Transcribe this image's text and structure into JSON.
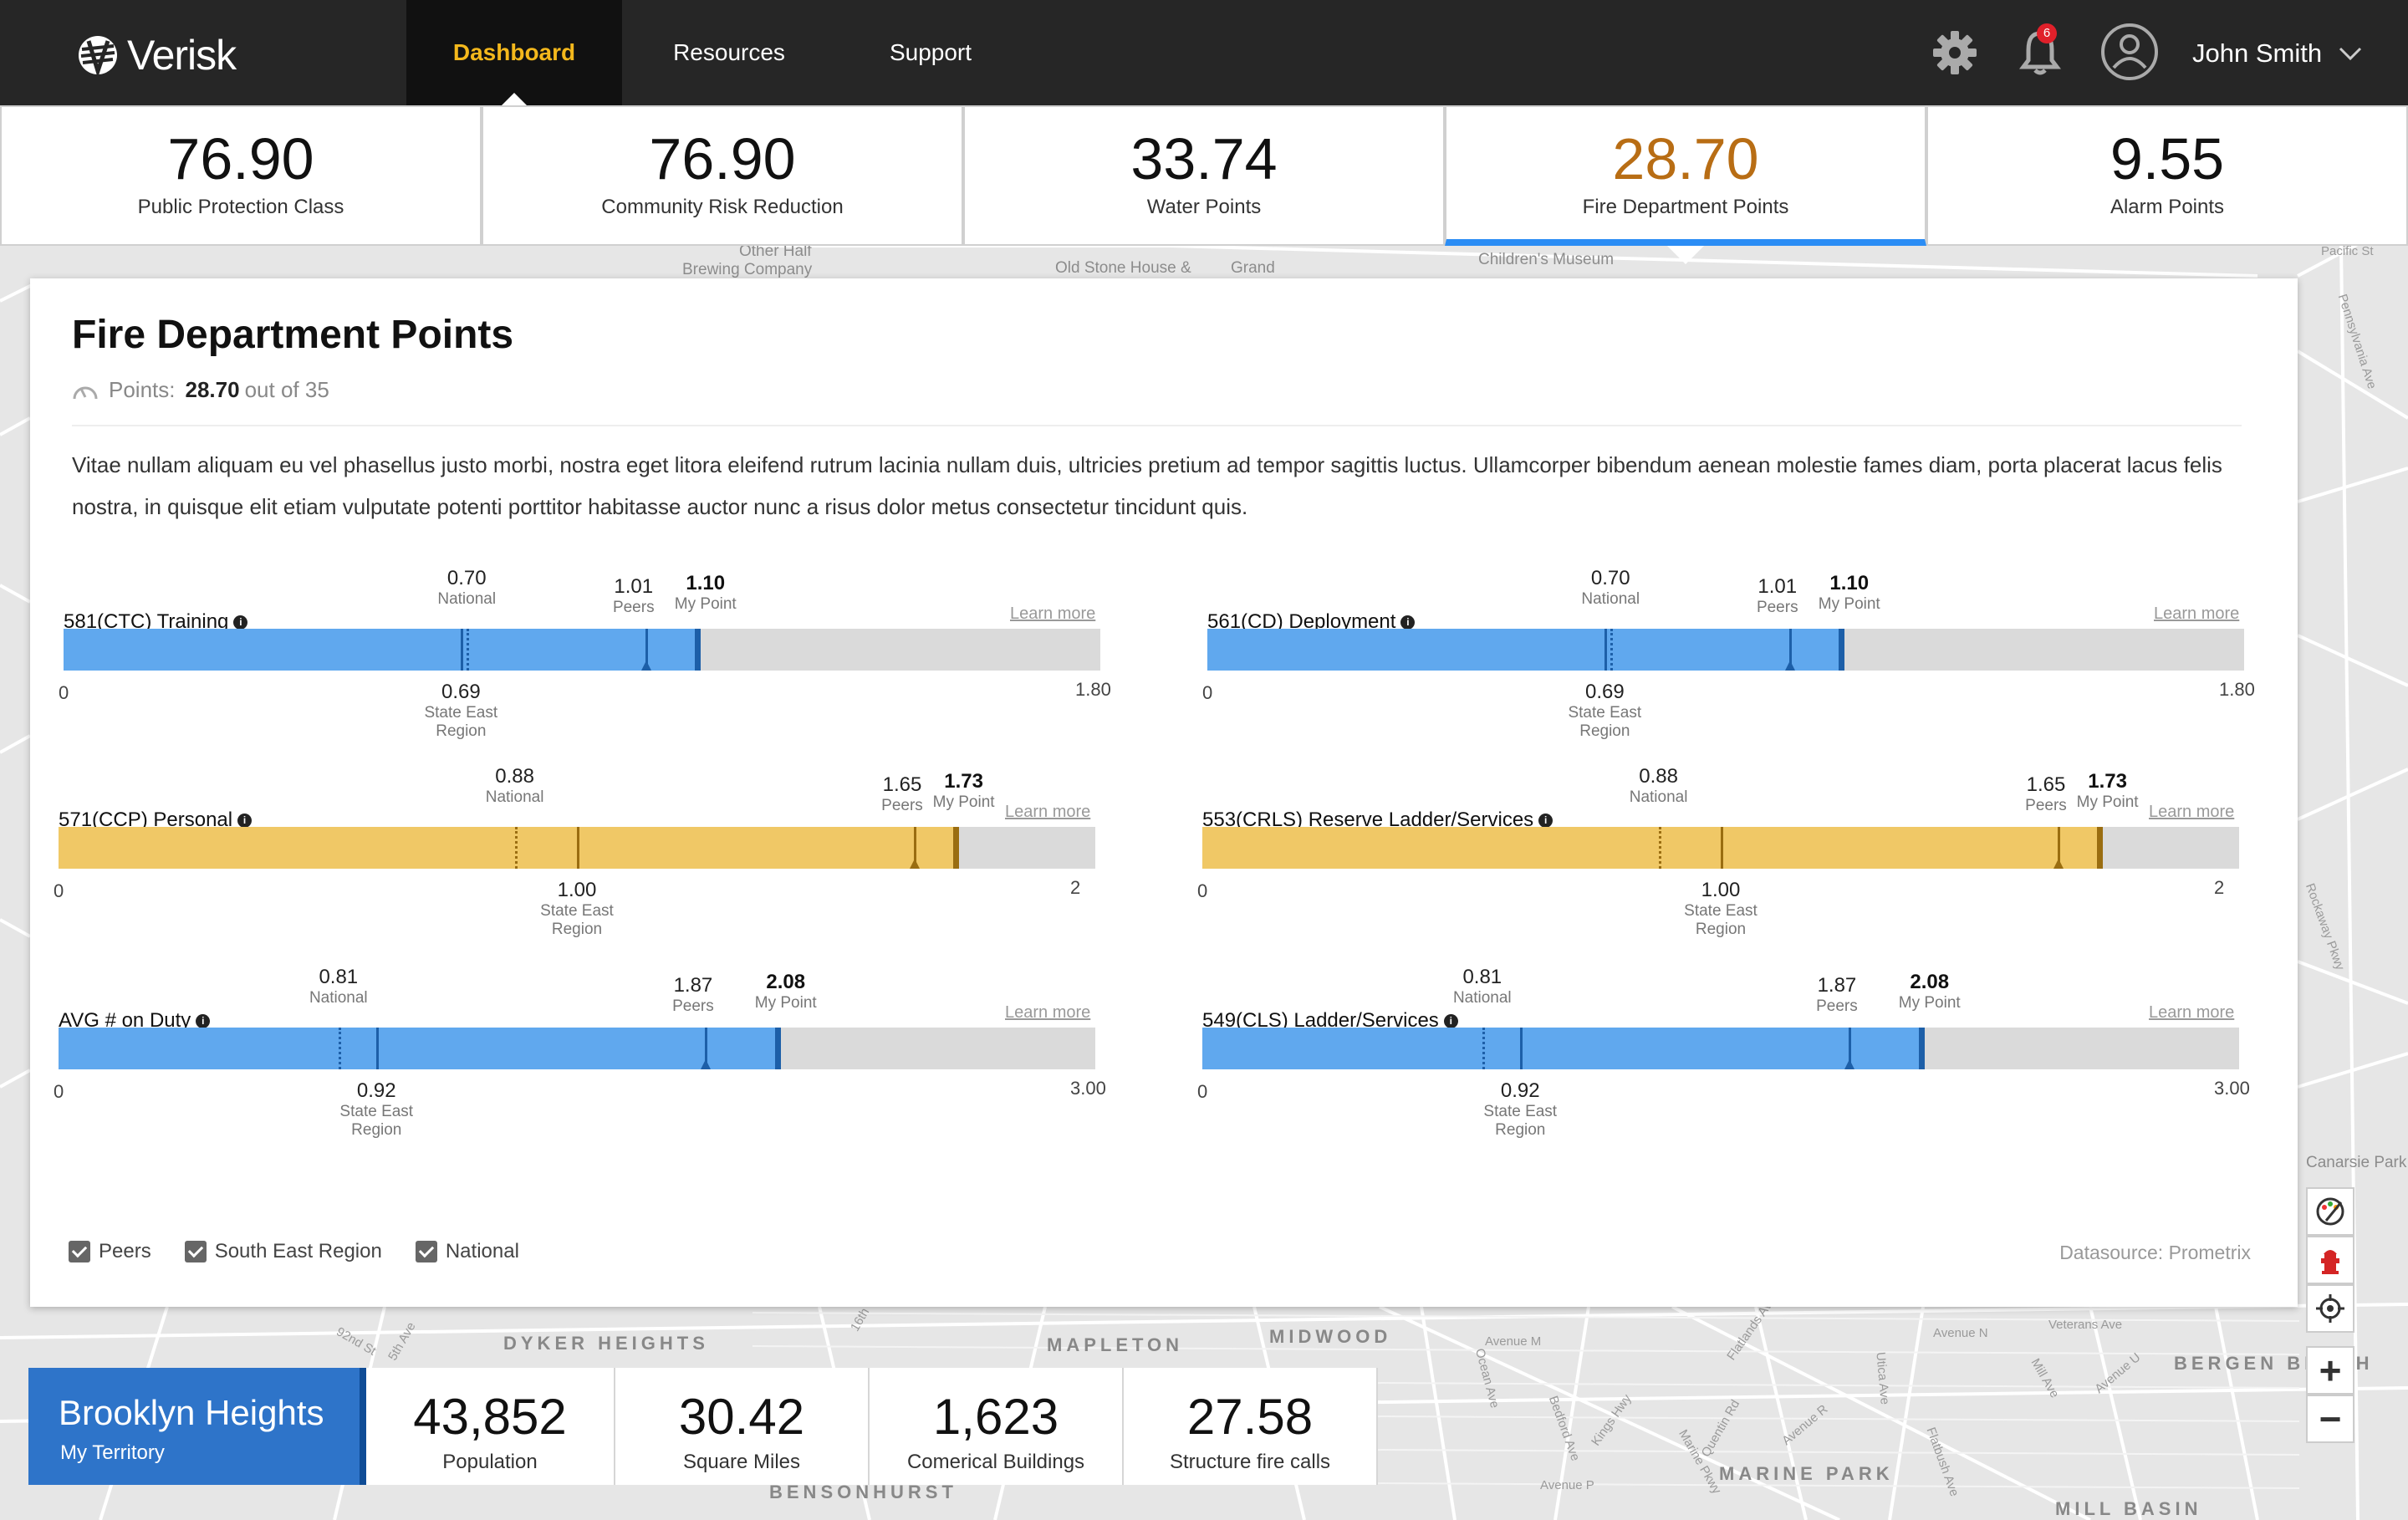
{
  "nav": {
    "brand": "Verisk",
    "tabs": [
      {
        "label": "Dashboard",
        "active": true
      },
      {
        "label": "Resources"
      },
      {
        "label": "Support"
      }
    ],
    "notifications_count": "6",
    "user_name": "John Smith",
    "icons": [
      "gear-icon",
      "bell-icon",
      "user-avatar-icon",
      "chevron-down-icon"
    ]
  },
  "tiles": [
    {
      "value": "76.90",
      "label": "Public Protection Class"
    },
    {
      "value": "76.90",
      "label": "Community Risk Reduction"
    },
    {
      "value": "33.74",
      "label": "Water Points"
    },
    {
      "value": "28.70",
      "label": "Fire Department Points",
      "active": true
    },
    {
      "value": "9.55",
      "label": "Alarm Points"
    }
  ],
  "panel": {
    "title": "Fire Department Points",
    "points_label": "Points:",
    "points_value": "28.70",
    "points_suffix": "out of 35",
    "description": "Vitae nullam aliquam eu vel phasellus justo morbi, nostra eget litora eleifend rutrum lacinia nullam duis, ultricies pretium ad tempor sagittis luctus.  Ullamcorper bibendum aenean molestie fames diam, porta placerat lacus felis nostra, in quisque elit etiam vulputate potenti porttitor habitasse auctor nunc a risus dolor metus consectetur tincidunt quis."
  },
  "metrics": [
    {
      "name": "581(CTC) Training",
      "color": "#60a8ee",
      "tick_color": "#1d5fa8",
      "min": "0",
      "max": "1.80",
      "scale_max": 1.8,
      "national": "0.70",
      "region": "0.69",
      "peers": "1.01",
      "my_point": "1.10",
      "learn_more": "Learn more"
    },
    {
      "name": "561(CD) Deployment",
      "color": "#60a8ee",
      "tick_color": "#1d5fa8",
      "min": "0",
      "max": "1.80",
      "scale_max": 1.8,
      "national": "0.70",
      "region": "0.69",
      "peers": "1.01",
      "my_point": "1.10",
      "learn_more": "Learn more"
    },
    {
      "name": "571(CCP) Personal",
      "color": "#f0c866",
      "tick_color": "#9a6d10",
      "min": "0",
      "max": "2",
      "scale_max": 2,
      "national": "0.88",
      "region": "1.00",
      "peers": "1.65",
      "my_point": "1.73",
      "learn_more": "Learn more"
    },
    {
      "name": "553(CRLS) Reserve Ladder/Services",
      "color": "#f0c866",
      "tick_color": "#9a6d10",
      "min": "0",
      "max": "2",
      "scale_max": 2,
      "national": "0.88",
      "region": "1.00",
      "peers": "1.65",
      "my_point": "1.73",
      "learn_more": "Learn more"
    },
    {
      "name": "AVG # on Duty",
      "color": "#60a8ee",
      "tick_color": "#1d5fa8",
      "min": "0",
      "max": "3.00",
      "scale_max": 3,
      "national": "0.81",
      "region": "0.92",
      "peers": "1.87",
      "my_point": "2.08",
      "learn_more": "Learn more"
    },
    {
      "name": "549(CLS) Ladder/Services",
      "color": "#60a8ee",
      "tick_color": "#1d5fa8",
      "min": "0",
      "max": "3.00",
      "scale_max": 3,
      "national": "0.81",
      "region": "0.92",
      "peers": "1.87",
      "my_point": "2.08",
      "learn_more": "Learn more"
    }
  ],
  "marker_labels": {
    "national": "National",
    "region_line1": "State East",
    "region_line2": "Region",
    "peers": "Peers",
    "my_point": "My Point"
  },
  "legend": [
    {
      "label": "Peers",
      "checked": true
    },
    {
      "label": "South East Region",
      "checked": true
    },
    {
      "label": "National",
      "checked": true
    }
  ],
  "datasource": "Datasource: Prometrix",
  "territory": {
    "name": "Brooklyn Heights",
    "subtitle": "My Territory"
  },
  "stats": [
    {
      "value": "43,852",
      "label": "Population"
    },
    {
      "value": "30.42",
      "label": "Square Miles"
    },
    {
      "value": "1,623",
      "label": "Comerical Buildings"
    },
    {
      "value": "27.58",
      "label": "Structure fire calls"
    }
  ],
  "map_controls": [
    "paint-icon",
    "hydrant-icon",
    "locate-icon",
    "+",
    "−"
  ],
  "map_labels": {
    "districts": [
      "DYKER HEIGHTS",
      "MAPLETON",
      "MIDWOOD",
      "BERGEN BEACH",
      "MARINE PARK",
      "MILL BASIN",
      "BENSONHURST"
    ],
    "places": [
      "Other Half",
      "Brewing Company",
      "Old Stone House &",
      "Grand",
      "Children's Museum",
      "Canarsie Park"
    ],
    "streets": [
      "Pennsylvania Ave",
      "Pacific St",
      "Avenue M",
      "Avenue N",
      "Avenue P",
      "Avenue R",
      "Avenue U",
      "Veterans Ave",
      "Ocean Ave",
      "Kings Hwy",
      "Flatlands Ave",
      "Bedford Ave",
      "Quentin Rd",
      "Utica Ave",
      "Flatbush Ave",
      "Mill Ave",
      "Rockaway Pkwy",
      "Marine Pkwy",
      "92nd St",
      "5th Ave",
      "16th"
    ]
  }
}
